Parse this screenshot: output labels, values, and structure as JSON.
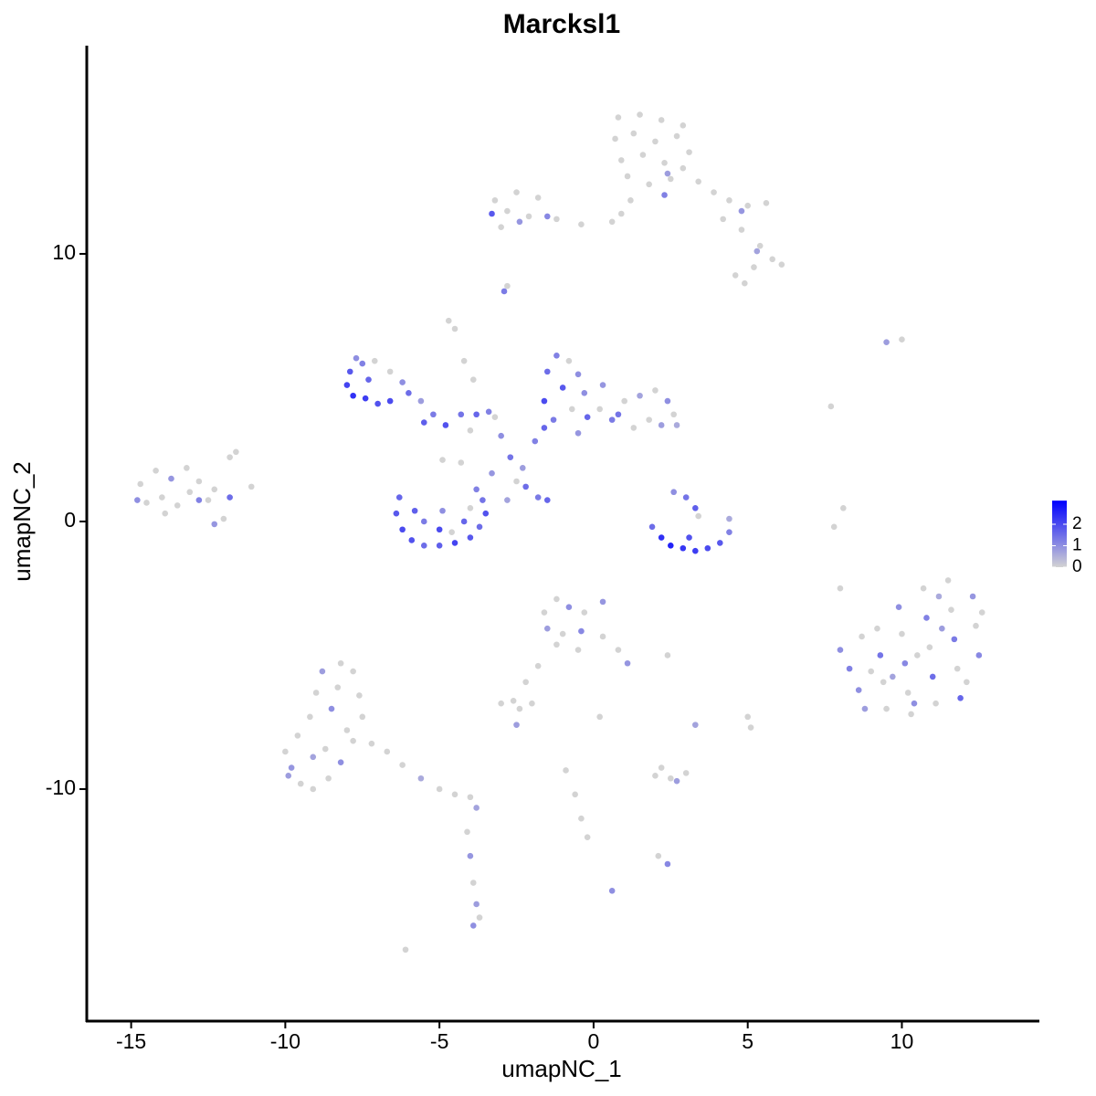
{
  "chart_data": {
    "type": "scatter",
    "title": "Marcksl1",
    "xlabel": "umapNC_1",
    "ylabel": "umapNC_2",
    "xlim": [
      -16.44,
      14.46
    ],
    "ylim": [
      -18.67,
      17.78
    ],
    "xticks": [
      -15,
      -10,
      -5,
      0,
      5,
      10
    ],
    "yticks": [
      -10,
      0,
      10
    ],
    "colorlim": [
      0,
      3.1
    ],
    "colorticks": [
      0,
      1,
      2
    ],
    "low_color": "#d3d3d3",
    "high_color": "#0000ff",
    "points": [
      [
        0.8,
        15.1,
        0
      ],
      [
        1.5,
        15.2,
        0
      ],
      [
        2.2,
        15.0,
        0
      ],
      [
        2.9,
        14.8,
        0
      ],
      [
        0.7,
        14.3,
        0
      ],
      [
        1.3,
        14.5,
        0
      ],
      [
        2.0,
        14.2,
        0
      ],
      [
        2.7,
        14.4,
        0
      ],
      [
        3.1,
        13.8,
        0
      ],
      [
        0.9,
        13.5,
        0
      ],
      [
        1.6,
        13.7,
        0
      ],
      [
        2.3,
        13.4,
        0
      ],
      [
        2.9,
        13.2,
        0
      ],
      [
        1.1,
        12.9,
        0
      ],
      [
        1.8,
        12.6,
        0
      ],
      [
        2.5,
        12.8,
        0
      ],
      [
        1.2,
        12.0,
        0
      ],
      [
        0.9,
        11.5,
        0
      ],
      [
        0.6,
        11.2,
        0
      ],
      [
        3.4,
        12.7,
        0
      ],
      [
        3.9,
        12.3,
        0
      ],
      [
        4.4,
        12.0,
        0
      ],
      [
        5.0,
        11.8,
        0
      ],
      [
        5.6,
        11.9,
        0
      ],
      [
        4.2,
        11.3,
        0
      ],
      [
        4.8,
        10.9,
        0
      ],
      [
        5.4,
        10.3,
        0
      ],
      [
        5.8,
        9.8,
        0
      ],
      [
        6.1,
        9.6,
        0
      ],
      [
        5.2,
        9.5,
        0
      ],
      [
        4.6,
        9.2,
        0
      ],
      [
        4.9,
        8.9,
        0
      ],
      [
        2.4,
        13.0,
        0.8
      ],
      [
        2.3,
        12.2,
        1.2
      ],
      [
        4.8,
        11.6,
        0.9
      ],
      [
        5.3,
        10.1,
        0.7
      ],
      [
        -3.2,
        12.0,
        0
      ],
      [
        -2.5,
        12.3,
        0
      ],
      [
        -1.8,
        12.1,
        0
      ],
      [
        -2.8,
        11.6,
        0
      ],
      [
        -2.1,
        11.4,
        0
      ],
      [
        -1.2,
        11.3,
        0
      ],
      [
        -0.4,
        11.1,
        0
      ],
      [
        -3.0,
        11.0,
        0
      ],
      [
        -3.3,
        11.5,
        1.8
      ],
      [
        -2.4,
        11.2,
        0.9
      ],
      [
        -1.5,
        11.4,
        1.1
      ],
      [
        -2.9,
        8.6,
        1.3
      ],
      [
        -2.8,
        8.8,
        0
      ],
      [
        -4.7,
        7.5,
        0
      ],
      [
        -4.5,
        7.2,
        0
      ],
      [
        -4.2,
        6.0,
        0
      ],
      [
        -3.9,
        5.3,
        0
      ],
      [
        -7.7,
        6.1,
        1.0
      ],
      [
        -7.9,
        5.6,
        1.8
      ],
      [
        -8.0,
        5.1,
        2.1
      ],
      [
        -7.8,
        4.7,
        2.4
      ],
      [
        -7.4,
        4.6,
        2.2
      ],
      [
        -7.0,
        4.4,
        1.9
      ],
      [
        -6.6,
        4.5,
        2.0
      ],
      [
        -7.3,
        5.3,
        1.6
      ],
      [
        -7.5,
        5.9,
        1.2
      ],
      [
        -7.1,
        6.0,
        0
      ],
      [
        -6.6,
        5.6,
        0
      ],
      [
        -6.2,
        5.2,
        1.0
      ],
      [
        -6.0,
        4.8,
        1.5
      ],
      [
        -5.6,
        4.5,
        0.8
      ],
      [
        -5.2,
        4.0,
        1.3
      ],
      [
        -4.8,
        3.6,
        1.9
      ],
      [
        -4.3,
        4.0,
        1.4
      ],
      [
        -3.8,
        4.0,
        1.6
      ],
      [
        -3.4,
        4.1,
        1.2
      ],
      [
        -5.5,
        3.7,
        1.7
      ],
      [
        -4.0,
        3.4,
        0
      ],
      [
        -3.2,
        3.9,
        0
      ],
      [
        -3.0,
        3.2,
        1.0
      ],
      [
        -2.7,
        2.4,
        1.4
      ],
      [
        -2.3,
        2.0,
        0.8
      ],
      [
        -1.9,
        3.0,
        1.2
      ],
      [
        -1.6,
        3.5,
        1.6
      ],
      [
        -2.5,
        1.5,
        0
      ],
      [
        -3.3,
        1.8,
        0.9
      ],
      [
        -4.3,
        2.2,
        0
      ],
      [
        -4.9,
        2.3,
        0
      ],
      [
        -2.2,
        1.3,
        1.5
      ],
      [
        -1.8,
        0.9,
        1.3
      ],
      [
        -1.5,
        0.8,
        1.6
      ],
      [
        -2.8,
        0.8,
        0.7
      ],
      [
        -6.3,
        0.9,
        1.6
      ],
      [
        -6.4,
        0.3,
        1.8
      ],
      [
        -6.2,
        -0.3,
        2.0
      ],
      [
        -5.9,
        -0.7,
        1.9
      ],
      [
        -5.5,
        -0.9,
        1.5
      ],
      [
        -5.0,
        -0.9,
        1.7
      ],
      [
        -4.5,
        -0.8,
        2.1
      ],
      [
        -4.0,
        -0.6,
        1.8
      ],
      [
        -3.7,
        -0.2,
        1.5
      ],
      [
        -3.5,
        0.3,
        1.9
      ],
      [
        -3.6,
        0.8,
        1.4
      ],
      [
        -3.8,
        1.2,
        1.2
      ],
      [
        -4.2,
        0.0,
        1.6
      ],
      [
        -5.0,
        -0.3,
        2.0
      ],
      [
        -5.5,
        0.0,
        1.3
      ],
      [
        -4.6,
        -0.4,
        0
      ],
      [
        -5.8,
        0.4,
        1.7
      ],
      [
        -4.0,
        0.5,
        0
      ],
      [
        -4.9,
        0.4,
        1.0
      ],
      [
        -1.5,
        5.6,
        1.5
      ],
      [
        -1.2,
        6.2,
        1.2
      ],
      [
        -0.8,
        6.0,
        0
      ],
      [
        -0.5,
        5.5,
        1.0
      ],
      [
        -1.0,
        5.0,
        1.8
      ],
      [
        -1.6,
        4.5,
        2.0
      ],
      [
        -0.3,
        4.8,
        1.0
      ],
      [
        0.2,
        4.2,
        0
      ],
      [
        0.6,
        3.8,
        1.3
      ],
      [
        1.0,
        4.5,
        0
      ],
      [
        1.5,
        4.7,
        0.7
      ],
      [
        2.0,
        4.9,
        0
      ],
      [
        2.4,
        4.5,
        1.0
      ],
      [
        2.6,
        4.0,
        0
      ],
      [
        2.2,
        3.6,
        0.8
      ],
      [
        1.8,
        3.8,
        0
      ],
      [
        1.3,
        3.5,
        0
      ],
      [
        0.8,
        4.0,
        1.4
      ],
      [
        -0.2,
        3.9,
        1.6
      ],
      [
        -0.7,
        4.2,
        0
      ],
      [
        -1.3,
        3.8,
        1.3
      ],
      [
        -0.5,
        3.3,
        0.9
      ],
      [
        2.7,
        3.6,
        0.6
      ],
      [
        0.3,
        5.1,
        0.9
      ],
      [
        1.9,
        -0.2,
        1.5
      ],
      [
        2.2,
        -0.6,
        2.4
      ],
      [
        2.5,
        -0.9,
        2.6
      ],
      [
        2.9,
        -1.0,
        2.3
      ],
      [
        3.3,
        -1.1,
        2.2
      ],
      [
        3.7,
        -1.0,
        2.0
      ],
      [
        4.1,
        -0.8,
        1.8
      ],
      [
        4.4,
        -0.4,
        1.2
      ],
      [
        4.4,
        0.1,
        0.6
      ],
      [
        3.0,
        0.9,
        1.4
      ],
      [
        3.3,
        0.5,
        1.7
      ],
      [
        3.4,
        0.2,
        0
      ],
      [
        2.6,
        1.1,
        1.0
      ],
      [
        3.1,
        -0.6,
        1.9
      ],
      [
        7.7,
        4.3,
        0
      ],
      [
        9.5,
        6.7,
        0.8
      ],
      [
        10.0,
        6.8,
        0
      ],
      [
        7.8,
        -0.2,
        0
      ],
      [
        8.1,
        0.5,
        0
      ],
      [
        8.0,
        -2.5,
        0
      ],
      [
        8.0,
        -4.8,
        1.0
      ],
      [
        8.3,
        -5.5,
        1.2
      ],
      [
        8.6,
        -6.3,
        1.0
      ],
      [
        8.8,
        -7.0,
        0.8
      ],
      [
        9.2,
        -4.0,
        0
      ],
      [
        9.3,
        -5.0,
        1.4
      ],
      [
        9.4,
        -6.0,
        0
      ],
      [
        9.5,
        -7.0,
        0
      ],
      [
        9.9,
        -3.2,
        1.0
      ],
      [
        10.0,
        -4.2,
        0
      ],
      [
        10.1,
        -5.3,
        1.1
      ],
      [
        10.2,
        -6.4,
        0
      ],
      [
        10.3,
        -7.2,
        0
      ],
      [
        10.7,
        -2.5,
        0
      ],
      [
        10.8,
        -3.6,
        1.2
      ],
      [
        10.9,
        -4.7,
        0
      ],
      [
        11.0,
        -5.8,
        1.5
      ],
      [
        11.1,
        -6.8,
        0
      ],
      [
        11.5,
        -2.2,
        0
      ],
      [
        11.6,
        -3.3,
        0
      ],
      [
        11.7,
        -4.4,
        1.3
      ],
      [
        11.8,
        -5.5,
        0
      ],
      [
        11.9,
        -6.6,
        1.6
      ],
      [
        12.3,
        -2.8,
        0.9
      ],
      [
        12.4,
        -3.9,
        0
      ],
      [
        12.5,
        -5.0,
        1.1
      ],
      [
        12.6,
        -3.4,
        0
      ],
      [
        9.7,
        -5.8,
        0.7
      ],
      [
        10.5,
        -5.0,
        0
      ],
      [
        11.3,
        -4.0,
        0.8
      ],
      [
        12.1,
        -6.0,
        0
      ],
      [
        8.7,
        -4.3,
        0
      ],
      [
        10.4,
        -6.8,
        1.0
      ],
      [
        11.2,
        -2.8,
        0.6
      ],
      [
        9.0,
        -5.6,
        0
      ],
      [
        -1.6,
        -3.4,
        0
      ],
      [
        -1.2,
        -2.9,
        0
      ],
      [
        -0.8,
        -3.2,
        1.0
      ],
      [
        -0.3,
        -3.4,
        0
      ],
      [
        0.3,
        -3.0,
        0.9
      ],
      [
        -1.5,
        -4.0,
        0.8
      ],
      [
        -1.0,
        -4.2,
        0
      ],
      [
        -0.4,
        -4.1,
        1.1
      ],
      [
        0.3,
        -4.3,
        0
      ],
      [
        0.8,
        -4.8,
        0
      ],
      [
        1.1,
        -5.3,
        0.9
      ],
      [
        -1.2,
        -4.6,
        0
      ],
      [
        -0.5,
        -4.8,
        0
      ],
      [
        -1.8,
        -5.4,
        0
      ],
      [
        -2.2,
        -6.0,
        0
      ],
      [
        -2.6,
        -6.7,
        0
      ],
      [
        -3.0,
        -6.8,
        0
      ],
      [
        -2.4,
        -7.0,
        0
      ],
      [
        -2.0,
        -6.8,
        0
      ],
      [
        -2.5,
        -7.6,
        0.8
      ],
      [
        0.2,
        -7.3,
        0
      ],
      [
        -0.9,
        -9.3,
        0
      ],
      [
        -0.6,
        -10.2,
        0
      ],
      [
        -0.4,
        -11.1,
        0
      ],
      [
        -0.2,
        -11.8,
        0
      ],
      [
        0.6,
        -13.8,
        1.0
      ],
      [
        2.0,
        -9.5,
        0
      ],
      [
        2.5,
        -9.6,
        0
      ],
      [
        3.0,
        -9.4,
        0
      ],
      [
        2.2,
        -9.2,
        0
      ],
      [
        2.7,
        -9.7,
        0.8
      ],
      [
        2.1,
        -12.5,
        0
      ],
      [
        2.4,
        -12.8,
        1.1
      ],
      [
        2.4,
        -5.0,
        0
      ],
      [
        3.3,
        -7.6,
        0.7
      ],
      [
        5.0,
        -7.3,
        0
      ],
      [
        5.1,
        -7.7,
        0
      ],
      [
        -6.1,
        -16.0,
        0
      ],
      [
        -10.0,
        -8.6,
        0
      ],
      [
        -9.8,
        -9.2,
        0.9
      ],
      [
        -9.5,
        -9.8,
        0
      ],
      [
        -9.1,
        -10.0,
        0
      ],
      [
        -8.6,
        -9.6,
        0
      ],
      [
        -8.2,
        -9.0,
        1.0
      ],
      [
        -7.8,
        -8.2,
        0
      ],
      [
        -7.5,
        -7.3,
        0
      ],
      [
        -7.6,
        -6.5,
        0
      ],
      [
        -7.8,
        -5.6,
        0
      ],
      [
        -8.2,
        -5.3,
        0
      ],
      [
        -8.8,
        -5.6,
        0.8
      ],
      [
        -9.0,
        -6.4,
        0
      ],
      [
        -9.2,
        -7.3,
        0
      ],
      [
        -9.6,
        -8.0,
        0
      ],
      [
        -8.5,
        -7.0,
        1.0
      ],
      [
        -8.0,
        -7.8,
        0
      ],
      [
        -8.7,
        -8.5,
        0
      ],
      [
        -9.1,
        -8.8,
        0.7
      ],
      [
        -8.3,
        -6.2,
        0
      ],
      [
        -7.2,
        -8.3,
        0
      ],
      [
        -6.7,
        -8.6,
        0
      ],
      [
        -6.2,
        -9.1,
        0
      ],
      [
        -5.6,
        -9.6,
        0.6
      ],
      [
        -5.0,
        -10.0,
        0
      ],
      [
        -4.5,
        -10.2,
        0
      ],
      [
        -4.0,
        -10.3,
        0
      ],
      [
        -3.8,
        -10.7,
        0.7
      ],
      [
        -4.1,
        -11.6,
        0
      ],
      [
        -4.0,
        -12.5,
        0.9
      ],
      [
        -3.9,
        -13.5,
        0
      ],
      [
        -3.8,
        -14.3,
        0.8
      ],
      [
        -3.7,
        -14.8,
        0
      ],
      [
        -3.9,
        -15.1,
        1.0
      ],
      [
        -9.9,
        -9.5,
        0.8
      ],
      [
        -14.7,
        1.4,
        0
      ],
      [
        -14.5,
        0.7,
        0
      ],
      [
        -14.2,
        1.9,
        0
      ],
      [
        -14.0,
        0.9,
        0
      ],
      [
        -13.7,
        1.6,
        0.9
      ],
      [
        -13.5,
        0.6,
        0
      ],
      [
        -13.2,
        2.0,
        0
      ],
      [
        -13.1,
        1.1,
        0
      ],
      [
        -12.8,
        1.5,
        0
      ],
      [
        -12.5,
        0.8,
        0
      ],
      [
        -12.3,
        1.2,
        0
      ],
      [
        -13.9,
        0.3,
        0
      ],
      [
        -12.3,
        -0.1,
        0.9
      ],
      [
        -12.0,
        0.1,
        0
      ],
      [
        -11.8,
        2.4,
        0
      ],
      [
        -11.6,
        2.6,
        0
      ],
      [
        -11.1,
        1.3,
        0
      ],
      [
        -14.8,
        0.8,
        1.0
      ],
      [
        -12.8,
        0.8,
        1.2
      ],
      [
        -11.8,
        0.9,
        1.5
      ]
    ]
  }
}
